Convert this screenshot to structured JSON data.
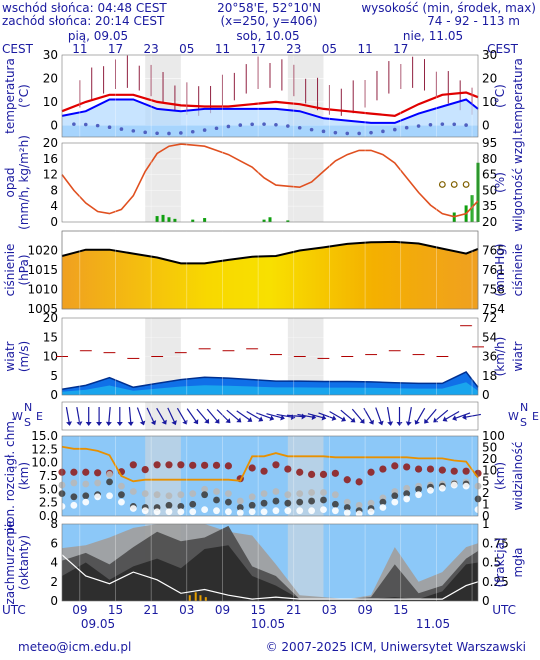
{
  "header": {
    "sunrise": "wschód słońca: 04:48 CEST",
    "sunset": "zachód słońca: 20:14 CEST",
    "coords": "20°58'E, 52°10'N",
    "grid": "(x=250,  y=406)",
    "elev_title": "wysokość (min, środek, max)",
    "elev_values": "74 - 92 - 113 m"
  },
  "footer": {
    "left": "meteo@icm.edu.pl",
    "right": "© 2007-2025 ICM, Uniwersytet Warszawski"
  },
  "colors": {
    "panel_bg": "#8cc8f8",
    "night_band": "#d8d8d8",
    "label_blue": "#1a1aa0",
    "temp_line": "#e00000",
    "dew_line": "#0000ff",
    "humidity": "#e05020",
    "pressure_line": "#000000",
    "wind": "#0a5ad0",
    "visibility": "#e89000",
    "cloud_dark": "#3a3a3a"
  },
  "chart_data": [
    {
      "id": "time_axis",
      "type": "table",
      "timezone_label": "CEST",
      "utc_label": "UTC",
      "days": [
        "pią, 09.05",
        "sob, 10.05",
        "nie, 11.05"
      ],
      "dates_bottom": [
        "09.05",
        "10.05",
        "11.05"
      ],
      "hours_cest_top": [
        "11",
        "17",
        "23",
        "05",
        "11",
        "17",
        "23",
        "05",
        "11",
        "17"
      ],
      "hours_utc_bottom": [
        "09",
        "15",
        "21",
        "03",
        "09",
        "15",
        "21",
        "03",
        "09",
        "15"
      ],
      "hour_start_utc": 6,
      "hour_end_utc": 76
    },
    {
      "id": "temperature",
      "type": "line",
      "ylabel": "temperatura",
      "unit_left": "(°C)",
      "unit_right": "(°C)",
      "ylim": [
        -5,
        30
      ],
      "yticks": [
        0,
        10,
        20,
        30
      ],
      "x": [
        6,
        10,
        14,
        18,
        22,
        26,
        30,
        34,
        38,
        42,
        46,
        50,
        54,
        58,
        62,
        66,
        70,
        74,
        76
      ],
      "series": [
        {
          "values": [
            6,
            10,
            13,
            13,
            10,
            8.5,
            8,
            8,
            9,
            10,
            9,
            7,
            6,
            5,
            4,
            9,
            13,
            14,
            12
          ]
        },
        {
          "values": [
            4,
            6,
            11,
            11,
            7,
            6,
            7,
            7,
            7,
            7,
            6,
            3,
            2,
            1,
            1,
            5,
            8,
            11,
            7
          ]
        }
      ]
    },
    {
      "id": "precipitation_humidity",
      "type": "line",
      "ylabel_left": "opad",
      "unit_left": "(mm/h, kg/m²h)",
      "ylabel_right": "wilgotność wzgl.",
      "unit_right": "(%)",
      "ylim_left": [
        0,
        20
      ],
      "yticks_left": [
        0,
        4,
        8,
        12,
        16,
        20
      ],
      "ylim_right": [
        20,
        95
      ],
      "yticks_right": [
        20,
        35,
        50,
        65,
        80,
        95
      ],
      "x": [
        6,
        8,
        10,
        12,
        14,
        16,
        18,
        20,
        22,
        24,
        26,
        28,
        30,
        32,
        34,
        36,
        38,
        40,
        42,
        44,
        46,
        48,
        50,
        52,
        54,
        56,
        58,
        60,
        62,
        64,
        66,
        68,
        70,
        72,
        74,
        76
      ],
      "series": [
        {
          "values": [
            65,
            50,
            38,
            30,
            28,
            32,
            45,
            68,
            85,
            92,
            94,
            93,
            92,
            88,
            84,
            78,
            72,
            62,
            55,
            54,
            53,
            58,
            68,
            78,
            84,
            88,
            88,
            84,
            76,
            62,
            48,
            36,
            28,
            25,
            28,
            40
          ]
        }
      ]
    },
    {
      "id": "pressure",
      "type": "area",
      "ylabel_left": "ciśnienie",
      "unit_left": "(hPa)",
      "ylabel_right": "ciśnienie",
      "unit_right": "(mm Hg)",
      "ylim": [
        1005,
        1025
      ],
      "yticks": [
        1005,
        1010,
        1015,
        1020
      ],
      "yticks_right": [
        "754",
        "758",
        "761",
        "765"
      ],
      "x": [
        6,
        10,
        14,
        18,
        22,
        26,
        30,
        34,
        38,
        42,
        46,
        50,
        54,
        58,
        62,
        66,
        70,
        74,
        76
      ],
      "values": [
        1018.6,
        1020.2,
        1020.2,
        1019.2,
        1018.2,
        1016.7,
        1016.7,
        1017.6,
        1018.4,
        1018.6,
        1020.0,
        1020.8,
        1021.7,
        1022.1,
        1022.2,
        1021.8,
        1020.5,
        1019.2,
        1020.4
      ]
    },
    {
      "id": "wind",
      "type": "area",
      "ylabel_left": "wiatr",
      "unit_left": "(m/s)",
      "ylabel_right": "wiatr",
      "unit_right": "(km/h)",
      "ylim": [
        0,
        20
      ],
      "yticks": [
        0,
        5,
        10,
        15,
        20
      ],
      "yticks_right": [
        "0",
        "18",
        "36",
        "54",
        "72"
      ],
      "x": [
        6,
        10,
        14,
        18,
        22,
        26,
        30,
        34,
        38,
        42,
        46,
        50,
        54,
        58,
        62,
        66,
        70,
        74,
        76
      ],
      "series": [
        {
          "values": [
            1.5,
            2.5,
            4.5,
            2,
            3,
            4,
            4.6,
            4.4,
            4,
            3.6,
            3.6,
            3.5,
            3.5,
            3.4,
            3.2,
            3,
            3,
            6,
            2
          ]
        },
        {
          "values": [
            10,
            11.5,
            11,
            9.5,
            10,
            11,
            12,
            11.5,
            12,
            10.5,
            10,
            9.5,
            10,
            10.5,
            11.5,
            10.5,
            10,
            18,
            12.5
          ]
        }
      ]
    },
    {
      "id": "wind_direction",
      "type": "table",
      "labels": [
        "W",
        "N",
        "S",
        "E"
      ],
      "directions_deg": [
        260,
        260,
        270,
        270,
        275,
        270,
        265,
        250,
        245,
        240,
        245,
        240,
        235,
        230,
        230,
        225,
        220,
        215,
        210,
        200,
        195,
        190,
        185,
        190,
        195,
        200,
        210,
        220,
        230,
        240,
        250,
        260,
        270,
        280,
        300,
        310,
        320,
        330,
        340,
        350
      ]
    },
    {
      "id": "cloud_base_visibility",
      "type": "scatter",
      "ylabel_left": "pion. rozciągł. chm.",
      "unit_left": "(km)",
      "ylabel_right": "widzialność",
      "unit_right": "(km)",
      "ylim_left": [
        0,
        15
      ],
      "yticks_left": [
        "0.0",
        "2.5",
        "5.0",
        "7.5",
        "10.0",
        "12.5",
        "15.0"
      ],
      "ylim_right": [
        0,
        100
      ],
      "yticks_right": [
        "0",
        "1",
        "2",
        "5",
        "10",
        "20",
        "50",
        "100"
      ],
      "x": [
        6,
        8,
        10,
        12,
        14,
        16,
        18,
        20,
        22,
        24,
        26,
        28,
        30,
        32,
        34,
        36,
        38,
        40,
        42,
        44,
        46,
        48,
        50,
        52,
        54,
        56,
        58,
        60,
        62,
        64,
        66,
        68,
        70,
        72,
        74,
        76
      ],
      "series": [
        {
          "values": [
            8.2,
            8.2,
            8.2,
            8.1,
            8.0,
            8.3,
            9.6,
            8.7,
            9.6,
            9.6,
            9.6,
            9.5,
            9.5,
            9.5,
            9.4,
            7.0,
            9.0,
            8.4,
            9.6,
            8.8,
            8.2,
            7.8,
            7.8,
            8.0,
            6.8,
            6.4,
            8.2,
            8.8,
            9.4,
            9.2,
            8.8,
            8.8,
            8.6,
            8.4,
            8.4,
            8.0
          ]
        },
        {
          "values": [
            5.8,
            6.2,
            6.0,
            6.2,
            7.8,
            5.6,
            4.6,
            4.2,
            4.0,
            3.8,
            4.0,
            4.2,
            5.0,
            4.6,
            4.2,
            2.8,
            3.6,
            4.2,
            4.6,
            4.0,
            4.2,
            4.4,
            4.4,
            4.0,
            2.6,
            2.0,
            2.4,
            3.4,
            4.6,
            5.2,
            5.6,
            5.8,
            6.0,
            6.2,
            6.4,
            5.6
          ]
        },
        {
          "values": [
            4.2,
            3.6,
            3.8,
            4.0,
            6.4,
            4.0,
            1.8,
            1.6,
            1.6,
            2.0,
            1.8,
            2.2,
            4.0,
            3.0,
            2.6,
            1.6,
            2.0,
            2.4,
            2.8,
            2.4,
            2.6,
            2.8,
            3.0,
            2.2,
            1.6,
            1.0,
            1.4,
            2.6,
            3.8,
            4.2,
            5.0,
            5.4,
            5.6,
            6.0,
            6.0,
            3.2
          ]
        },
        {
          "values": [
            1.8,
            2.0,
            2.6,
            3.6,
            3.8,
            2.6,
            1.4,
            1.0,
            0.8,
            0.8,
            0.8,
            0.8,
            1.2,
            1.0,
            0.8,
            0.6,
            0.8,
            0.8,
            1.0,
            1.0,
            1.0,
            1.0,
            1.2,
            1.0,
            0.6,
            0.4,
            0.8,
            1.6,
            2.6,
            3.2,
            4.0,
            4.8,
            5.2,
            5.8,
            5.6,
            1.2
          ]
        },
        {
          "values": [
            13.0,
            12.6,
            12.6,
            12.2,
            11.4,
            7.5,
            6.5,
            6.8,
            6.8,
            6.8,
            6.8,
            6.8,
            6.8,
            6.8,
            6.8,
            6.6,
            11.2,
            11.2,
            11.8,
            11.2,
            11.2,
            11.2,
            11.2,
            11.0,
            11.0,
            11.0,
            11.0,
            11.0,
            11.0,
            11.0,
            10.8,
            10.8,
            10.8,
            10.4,
            10.2,
            7.2
          ]
        }
      ]
    },
    {
      "id": "cloud_cover_fog",
      "type": "area",
      "ylabel_left": "zachmurzenie",
      "unit_left": "(oktanty)",
      "ylabel_right": "mgła",
      "unit_right": "(frakcja)",
      "ylim_left": [
        0,
        8
      ],
      "yticks_left": [
        0,
        2,
        4,
        6,
        8
      ],
      "ylim_right": [
        0,
        1
      ],
      "yticks_right": [
        "0",
        "0.25",
        "0.5",
        "0.75",
        "1"
      ],
      "x": [
        6,
        10,
        14,
        18,
        22,
        26,
        30,
        34,
        38,
        42,
        46,
        50,
        54,
        58,
        62,
        66,
        70,
        74,
        76
      ],
      "series": [
        {
          "values": [
            5.5,
            5.8,
            6.6,
            7.6,
            8,
            8,
            8,
            7.2,
            6.8,
            3.8,
            0.6,
            0.4,
            0.2,
            0.6,
            5.6,
            2.0,
            3.0,
            5.6,
            6.0
          ]
        },
        {
          "values": [
            4.2,
            5.0,
            3.8,
            5.6,
            7.2,
            6.2,
            6.6,
            7.8,
            3.6,
            2.6,
            0.2,
            0.2,
            0.2,
            0.4,
            3.8,
            0.8,
            1.6,
            4.4,
            5.2
          ]
        },
        {
          "values": [
            2.6,
            4.0,
            2.2,
            3.6,
            4.4,
            3.4,
            5.4,
            5.8,
            2.6,
            1.6,
            0.2,
            0.2,
            0.2,
            0.2,
            0.4,
            0.2,
            1.0,
            3.8,
            4.0
          ]
        },
        {
          "values": [
            4.8,
            2.6,
            1.8,
            3.0,
            2.2,
            0.8,
            1.2,
            0.6,
            0.2,
            0.4,
            0.2,
            0.2,
            0.2,
            0.2,
            0.2,
            0.2,
            0.2,
            1.6,
            2.0
          ]
        }
      ]
    }
  ]
}
